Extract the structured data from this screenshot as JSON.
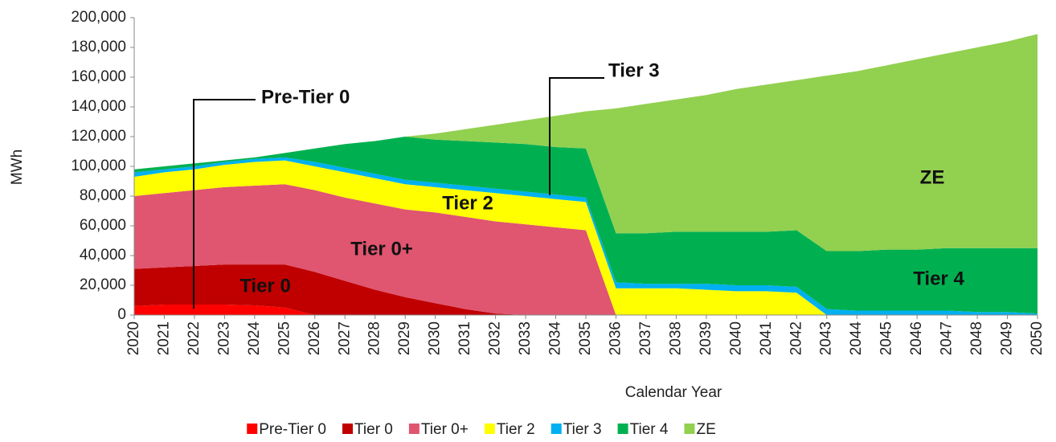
{
  "chart_data": {
    "type": "stacked_area",
    "x_label": "Calendar Year",
    "y_label": "MWh",
    "categories": [
      "2020",
      "2021",
      "2022",
      "2023",
      "2024",
      "2025",
      "2026",
      "2027",
      "2028",
      "2029",
      "2030",
      "2031",
      "2032",
      "2033",
      "2034",
      "2035",
      "2036",
      "2037",
      "2038",
      "2039",
      "2040",
      "2041",
      "2042",
      "2043",
      "2044",
      "2045",
      "2046",
      "2047",
      "2048",
      "2049",
      "2050"
    ],
    "ylim": [
      0,
      200000
    ],
    "yticks": [
      0,
      {
        "value": 20000,
        "label": "20,000"
      },
      {
        "value": 40000,
        "label": "40,000"
      },
      {
        "value": 60000,
        "label": "60,000"
      },
      {
        "value": 80000,
        "label": "80,000"
      },
      {
        "value": 100000,
        "label": "100,000"
      },
      {
        "value": 120000,
        "label": "120,000"
      },
      {
        "value": 140000,
        "label": "140,000"
      },
      {
        "value": 160000,
        "label": "160,000"
      },
      {
        "value": 180000,
        "label": "180,000"
      },
      {
        "value": 200000,
        "label": "200,000"
      }
    ],
    "series": [
      {
        "name": "Pre-Tier 0",
        "color": "#ff0000",
        "values": [
          6000,
          7000,
          7000,
          7000,
          6500,
          5000,
          0,
          0,
          0,
          0,
          0,
          0,
          0,
          0,
          0,
          0,
          0,
          0,
          0,
          0,
          0,
          0,
          0,
          0,
          0,
          0,
          0,
          0,
          0,
          0,
          0
        ]
      },
      {
        "name": "Tier 0",
        "color": "#c00000",
        "values": [
          25000,
          25000,
          26000,
          27000,
          27500,
          29000,
          29000,
          23000,
          17000,
          12000,
          8000,
          4000,
          1000,
          0,
          0,
          0,
          0,
          0,
          0,
          0,
          0,
          0,
          0,
          0,
          0,
          0,
          0,
          0,
          0,
          0,
          0
        ]
      },
      {
        "name": "Tier 0+",
        "color": "#e05570",
        "values": [
          49000,
          50000,
          51000,
          52000,
          53000,
          54000,
          55000,
          56000,
          58000,
          59000,
          61000,
          62000,
          62000,
          61000,
          59000,
          57000,
          0,
          0,
          0,
          0,
          0,
          0,
          0,
          0,
          0,
          0,
          0,
          0,
          0,
          0,
          0
        ]
      },
      {
        "name": "Tier 2",
        "color": "#ffff00",
        "values": [
          13000,
          14000,
          14000,
          15000,
          16000,
          16000,
          16000,
          17000,
          17000,
          17000,
          17000,
          18000,
          19000,
          19000,
          19000,
          19000,
          18000,
          18000,
          18000,
          17000,
          16000,
          16000,
          15000,
          0,
          0,
          0,
          0,
          0,
          0,
          0,
          0
        ]
      },
      {
        "name": "Tier 3",
        "color": "#00b0f0",
        "values": [
          3000,
          2000,
          2000,
          2000,
          2000,
          2000,
          3000,
          3000,
          3000,
          3000,
          3000,
          3000,
          3000,
          3000,
          3000,
          3000,
          4000,
          3000,
          3000,
          4000,
          4000,
          4000,
          4000,
          4000,
          3000,
          3000,
          3000,
          3000,
          2000,
          2000,
          1000
        ]
      },
      {
        "name": "Tier 4",
        "color": "#00b050",
        "values": [
          2000,
          2000,
          2000,
          1000,
          1000,
          3000,
          9000,
          16000,
          22000,
          29000,
          29000,
          30000,
          31000,
          32000,
          32000,
          33000,
          33000,
          34000,
          35000,
          35000,
          36000,
          36000,
          38000,
          39000,
          40000,
          41000,
          41000,
          42000,
          43000,
          43000,
          44000
        ]
      },
      {
        "name": "ZE",
        "color": "#92d050",
        "values": [
          0,
          0,
          0,
          0,
          0,
          0,
          0,
          0,
          0,
          0,
          4000,
          8000,
          12000,
          16000,
          21000,
          25000,
          84000,
          87000,
          89000,
          92000,
          96000,
          99000,
          101000,
          118000,
          121000,
          124000,
          128000,
          131000,
          135000,
          139000,
          144000
        ]
      }
    ],
    "annotations": [
      "Pre-Tier 0",
      "Tier 0",
      "Tier 0+",
      "Tier 2",
      "Tier 3",
      "Tier 4",
      "ZE"
    ]
  }
}
